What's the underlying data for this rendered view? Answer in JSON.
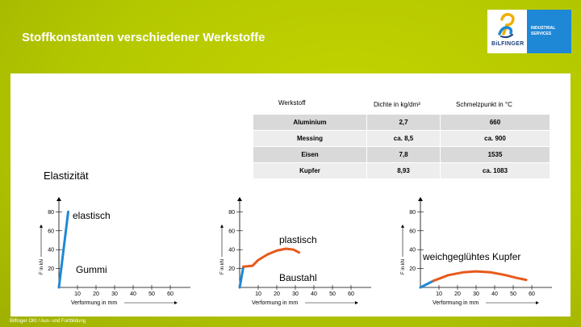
{
  "slide": {
    "title": "Stoffkonstanten verschiedener Werkstoffe",
    "footer": "Bilfinger OKI / Aus- und Fortbildung",
    "colors": {
      "background": "#b4c800",
      "accent_blue": "#1e88d6",
      "curve_orange": "#e8591a"
    }
  },
  "logo": {
    "line1": "INDUSTRIAL",
    "line2": "SERVICES",
    "word": "BiLFINGER"
  },
  "table": {
    "headers": [
      "Werkstoff",
      "Dichte in kg/dm³",
      "Schmelzpunkt in °C"
    ],
    "rows": [
      [
        "Aluminium",
        "2,7",
        "660"
      ],
      [
        "Messing",
        "ca. 8,5",
        "ca. 900"
      ],
      [
        "Eisen",
        "7,8",
        "1535"
      ],
      [
        "Kupfer",
        "8,93",
        "ca. 1083"
      ]
    ]
  },
  "section_heading": "Elastizität",
  "chart_data": [
    {
      "type": "line",
      "ylabel": "F in kN",
      "xlabel": "Verformung in mm",
      "x_ticks": [
        "10",
        "20",
        "30",
        "40",
        "50",
        "60"
      ],
      "y_ticks": [
        "20",
        "40",
        "60",
        "80"
      ],
      "labels": [
        "elastisch",
        "Gummi"
      ],
      "series": [
        {
          "color": "#1e88d6",
          "points": [
            [
              0,
              0
            ],
            [
              5,
              80
            ]
          ]
        }
      ]
    },
    {
      "type": "line",
      "ylabel": "F in kN",
      "xlabel": "Verformung in mm",
      "x_ticks": [
        "10",
        "20",
        "30",
        "40",
        "50",
        "60"
      ],
      "y_ticks": [
        "20",
        "40",
        "60",
        "80"
      ],
      "labels": [
        "plastisch",
        "Baustahl"
      ],
      "series": [
        {
          "color": "#1e88d6",
          "points": [
            [
              0,
              0
            ],
            [
              2,
              22
            ]
          ]
        },
        {
          "color": "#e8591a",
          "points": [
            [
              2,
              22
            ],
            [
              7,
              23
            ],
            [
              10,
              29
            ],
            [
              15,
              35
            ],
            [
              20,
              39
            ],
            [
              25,
              41
            ],
            [
              29,
              40
            ],
            [
              32,
              37
            ]
          ]
        }
      ]
    },
    {
      "type": "line",
      "ylabel": "F in kN",
      "xlabel": "Verformung in mm",
      "x_ticks": [
        "10",
        "20",
        "30",
        "40",
        "50",
        "60"
      ],
      "y_ticks": [
        "20",
        "40",
        "60",
        "80"
      ],
      "labels": [
        "weichgeglühtes Kupfer"
      ],
      "series": [
        {
          "color": "#1e88d6",
          "points": [
            [
              0,
              0
            ],
            [
              7,
              7
            ]
          ]
        },
        {
          "color": "#e8591a",
          "points": [
            [
              7,
              7
            ],
            [
              15,
              13
            ],
            [
              23,
              16
            ],
            [
              30,
              17
            ],
            [
              38,
              16
            ],
            [
              46,
              13
            ],
            [
              52,
              10
            ],
            [
              57,
              8
            ]
          ]
        }
      ]
    }
  ]
}
